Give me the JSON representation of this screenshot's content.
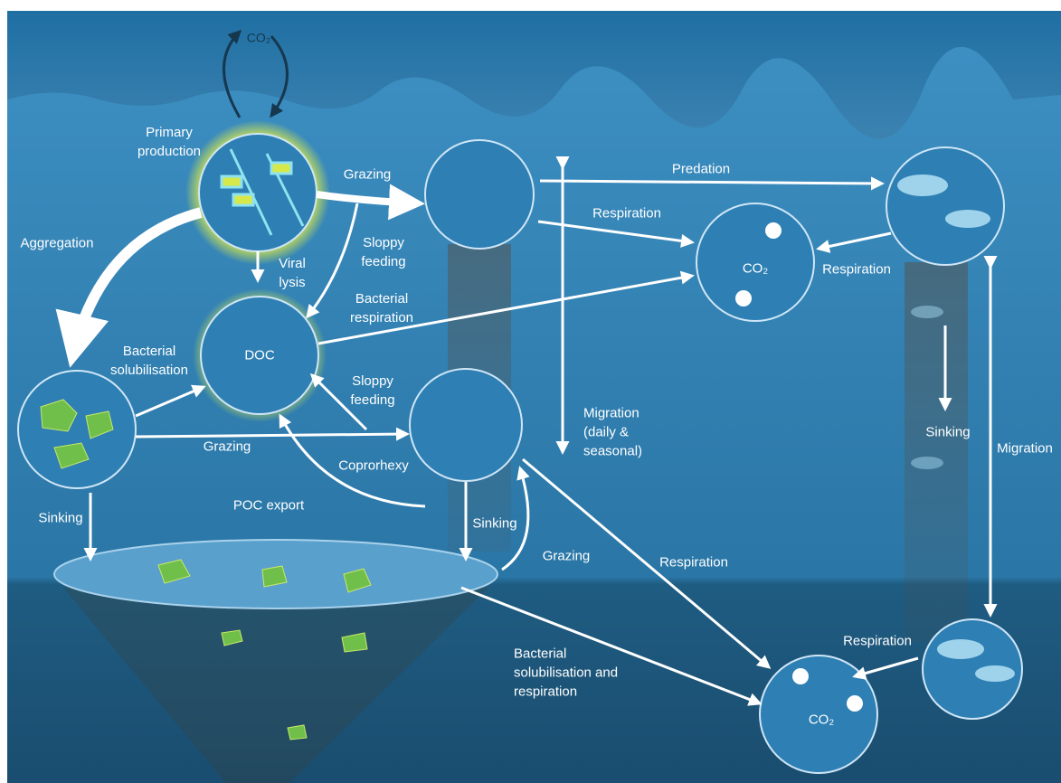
{
  "nodes": {
    "co2_atmosphere": "CO₂",
    "primary_production": "Primary\nproduction",
    "doc": "DOC",
    "co2_midwater": "CO₂",
    "co2_deep": "CO₂"
  },
  "processes": {
    "grazing_top": "Grazing",
    "predation": "Predation",
    "respiration_zooplankton": "Respiration",
    "respiration_fish": "Respiration",
    "aggregation": "Aggregation",
    "viral_lysis": "Viral\nlysis",
    "sloppy_feeding_top": "Sloppy\nfeeding",
    "bacterial_respiration": "Bacterial\nrespiration",
    "bacterial_solubilisation": "Bacterial\nsolubilisation",
    "sloppy_feeding_lower": "Sloppy\nfeeding",
    "grazing_lower": "Grazing",
    "coprorhexy": "Coprorhexy",
    "migration_daily": "Migration\n(daily &\nseasonal)",
    "sinking_fish": "Sinking",
    "migration_fish": "Migration",
    "sinking_aggregates": "Sinking",
    "poc_export": "POC export",
    "sinking_zooplankton": "Sinking",
    "grazing_poc": "Grazing",
    "respiration_deep_zooplankton": "Respiration",
    "respiration_deep_fish": "Respiration",
    "bacterial_solubilisation_respiration": "Bacterial\nsolubilisation and\nrespiration"
  }
}
